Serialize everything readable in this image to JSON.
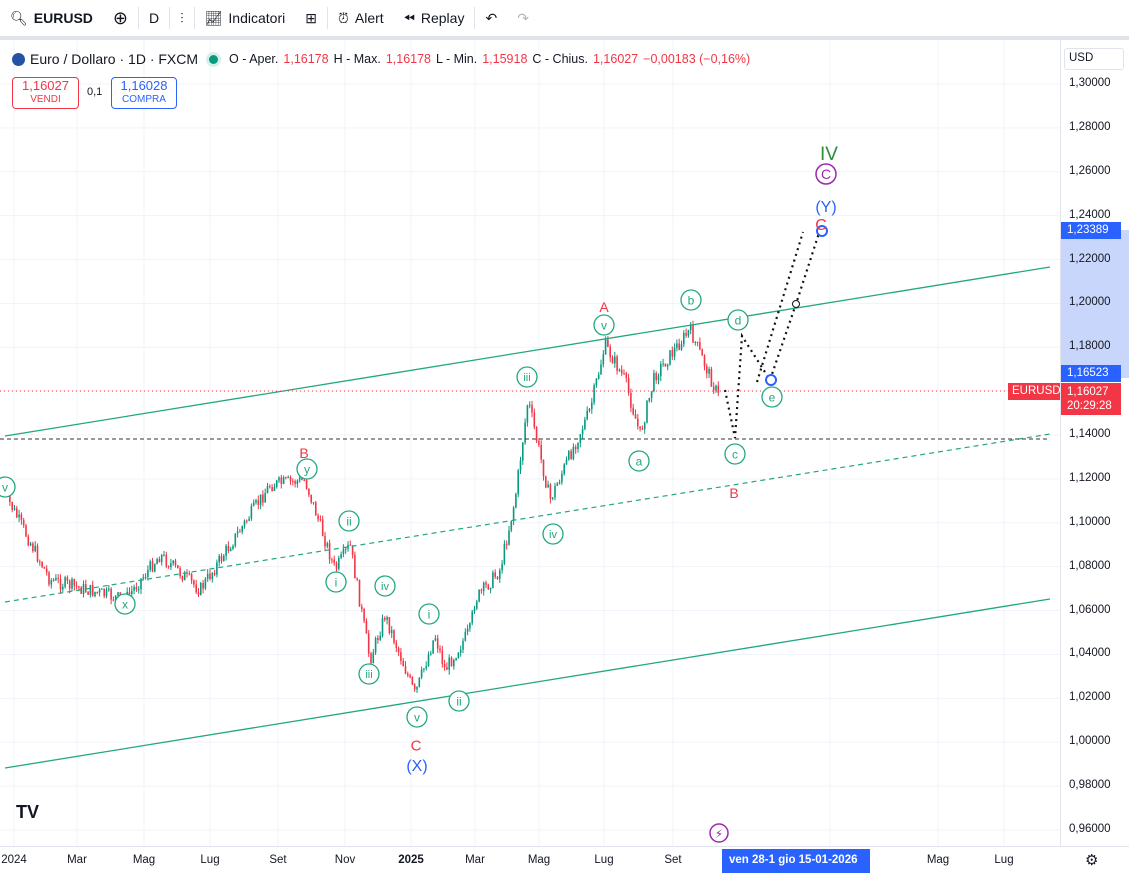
{
  "toolbar": {
    "symbol": "EURUSD",
    "interval": "D",
    "indicators": "Indicatori",
    "alert": "Alert",
    "replay": "Replay"
  },
  "legend": {
    "title": "Euro / Dollaro · 1D · FXCM",
    "o_label": "O - Aper.",
    "o": "1,16178",
    "h_label": "H - Max.",
    "h": "1,16178",
    "l_label": "L - Min.",
    "l": "1,15918",
    "c_label": "C - Chius.",
    "c": "1,16027",
    "change": "−0,00183 (−0,16%)"
  },
  "trade": {
    "sell_price": "1,16027",
    "sell_label": "VENDI",
    "spread": "0,1",
    "buy_price": "1,16028",
    "buy_label": "COMPRA"
  },
  "price_scale": {
    "currency": "USD",
    "ticks": [
      "1,30000",
      "1,28000",
      "1,26000",
      "1,24000",
      "1,22000",
      "1,20000",
      "1,18000",
      "1,16000",
      "1,14000",
      "1,12000",
      "1,10000",
      "1,08000",
      "1,06000",
      "1,04000",
      "1,02000",
      "1,00000",
      "0,98000",
      "0,96000"
    ],
    "marker_high": "1,23389",
    "marker_low": "1,16523",
    "symbol_tag": "EURUSD",
    "last_price": "1,16027",
    "countdown": "20:29:28"
  },
  "time_scale": {
    "ticks": [
      "2024",
      "Mar",
      "Mag",
      "Lug",
      "Set",
      "Nov",
      "2025",
      "Mar",
      "Mag",
      "Lug",
      "Set",
      "ar",
      "Mag",
      "Lug"
    ],
    "range_label": "ven 28-1  gio 15-01-2026"
  },
  "waves": {
    "A": "A",
    "B1": "B",
    "B2": "B",
    "C1": "C",
    "C2": "C",
    "X": "(X)",
    "Y": "(Y)",
    "IV": "IV",
    "Cc": "C",
    "i1": "i",
    "ii1": "ii",
    "iii1": "iii",
    "iv1": "iv",
    "v1": "v",
    "y": "y",
    "v0": "v",
    "x": "x",
    "i2": "i",
    "ii2": "ii",
    "iii2": "iii",
    "iv2": "iv",
    "v2": "v",
    "a": "a",
    "b": "b",
    "c": "c",
    "d": "d",
    "e": "e"
  },
  "colors": {
    "up": "#089981",
    "down": "#f23645",
    "wave_green": "#22a77e",
    "wave_red": "#f23645",
    "wave_blue": "#2962ff",
    "wave_purple": "#9c27b0"
  }
}
